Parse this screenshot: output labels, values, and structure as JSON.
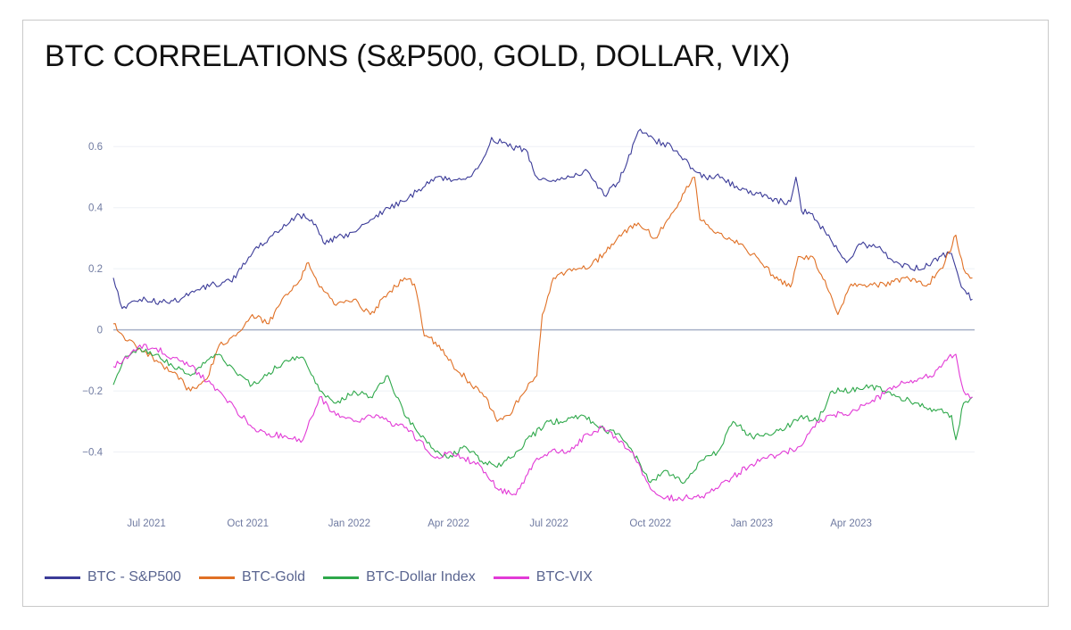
{
  "chart_data": {
    "type": "line",
    "title": "BTC CORRELATIONS (S&P500, GOLD, DOLLAR, VIX)",
    "xlabel": "",
    "ylabel": "",
    "x_range": [
      "2021-06-01",
      "2023-07-22"
    ],
    "ylim": [
      -0.6,
      0.7
    ],
    "y_ticks": [
      {
        "value": 0.6,
        "label": "0.6"
      },
      {
        "value": 0.4,
        "label": "0.4"
      },
      {
        "value": 0.2,
        "label": "0.2"
      },
      {
        "value": 0,
        "label": "0"
      },
      {
        "value": -0.2,
        "label": "−0.2"
      },
      {
        "value": -0.4,
        "label": "−0.4"
      }
    ],
    "x_ticks": [
      {
        "date": "2021-07-01",
        "label": "Jul 2021"
      },
      {
        "date": "2021-10-01",
        "label": "Oct 2021"
      },
      {
        "date": "2022-01-01",
        "label": "Jan 2022"
      },
      {
        "date": "2022-04-01",
        "label": "Apr 2022"
      },
      {
        "date": "2022-07-01",
        "label": "Jul 2022"
      },
      {
        "date": "2022-10-01",
        "label": "Oct 2022"
      },
      {
        "date": "2023-01-01",
        "label": "Jan 2023"
      },
      {
        "date": "2023-04-01",
        "label": "Apr 2023"
      }
    ],
    "grid": true,
    "legend_position": "bottom-left",
    "series": [
      {
        "name": "BTC - S&P500",
        "color": "#3b3b98",
        "points": [
          [
            "2021-06-01",
            0.17
          ],
          [
            "2021-06-09",
            0.07
          ],
          [
            "2021-06-25",
            0.1
          ],
          [
            "2021-07-15",
            0.09
          ],
          [
            "2021-08-01",
            0.1
          ],
          [
            "2021-08-15",
            0.13
          ],
          [
            "2021-09-01",
            0.15
          ],
          [
            "2021-09-15",
            0.16
          ],
          [
            "2021-09-25",
            0.2
          ],
          [
            "2021-10-05",
            0.25
          ],
          [
            "2021-10-20",
            0.3
          ],
          [
            "2021-11-01",
            0.33
          ],
          [
            "2021-11-15",
            0.38
          ],
          [
            "2021-11-28",
            0.36
          ],
          [
            "2021-12-10",
            0.28
          ],
          [
            "2021-12-20",
            0.3
          ],
          [
            "2022-01-05",
            0.32
          ],
          [
            "2022-01-20",
            0.36
          ],
          [
            "2022-02-05",
            0.4
          ],
          [
            "2022-02-20",
            0.42
          ],
          [
            "2022-03-05",
            0.46
          ],
          [
            "2022-03-20",
            0.5
          ],
          [
            "2022-04-05",
            0.49
          ],
          [
            "2022-04-20",
            0.5
          ],
          [
            "2022-05-01",
            0.55
          ],
          [
            "2022-05-10",
            0.63
          ],
          [
            "2022-05-25",
            0.6
          ],
          [
            "2022-06-10",
            0.59
          ],
          [
            "2022-06-20",
            0.5
          ],
          [
            "2022-07-05",
            0.49
          ],
          [
            "2022-07-20",
            0.5
          ],
          [
            "2022-08-05",
            0.52
          ],
          [
            "2022-08-20",
            0.44
          ],
          [
            "2022-09-01",
            0.48
          ],
          [
            "2022-09-10",
            0.55
          ],
          [
            "2022-09-20",
            0.65
          ],
          [
            "2022-10-05",
            0.62
          ],
          [
            "2022-10-20",
            0.6
          ],
          [
            "2022-11-01",
            0.56
          ],
          [
            "2022-11-10",
            0.52
          ],
          [
            "2022-11-20",
            0.5
          ],
          [
            "2022-12-05",
            0.5
          ],
          [
            "2022-12-20",
            0.46
          ],
          [
            "2023-01-05",
            0.45
          ],
          [
            "2023-01-20",
            0.42
          ],
          [
            "2023-02-05",
            0.42
          ],
          [
            "2023-02-10",
            0.5
          ],
          [
            "2023-02-15",
            0.39
          ],
          [
            "2023-02-25",
            0.38
          ],
          [
            "2023-03-10",
            0.31
          ],
          [
            "2023-03-20",
            0.26
          ],
          [
            "2023-03-28",
            0.22
          ],
          [
            "2023-04-10",
            0.28
          ],
          [
            "2023-04-25",
            0.27
          ],
          [
            "2023-05-10",
            0.22
          ],
          [
            "2023-05-25",
            0.2
          ],
          [
            "2023-06-10",
            0.21
          ],
          [
            "2023-06-20",
            0.24
          ],
          [
            "2023-07-01",
            0.25
          ],
          [
            "2023-07-10",
            0.14
          ],
          [
            "2023-07-20",
            0.1
          ]
        ]
      },
      {
        "name": "BTC-Gold",
        "color": "#e07025",
        "points": [
          [
            "2021-06-01",
            0.02
          ],
          [
            "2021-06-10",
            -0.02
          ],
          [
            "2021-06-25",
            -0.06
          ],
          [
            "2021-07-10",
            -0.1
          ],
          [
            "2021-07-25",
            -0.14
          ],
          [
            "2021-08-10",
            -0.2
          ],
          [
            "2021-08-25",
            -0.16
          ],
          [
            "2021-09-05",
            -0.05
          ],
          [
            "2021-09-20",
            -0.02
          ],
          [
            "2021-10-05",
            0.05
          ],
          [
            "2021-10-20",
            0.02
          ],
          [
            "2021-11-01",
            0.1
          ],
          [
            "2021-11-15",
            0.15
          ],
          [
            "2021-11-25",
            0.22
          ],
          [
            "2021-12-05",
            0.14
          ],
          [
            "2021-12-20",
            0.08
          ],
          [
            "2022-01-05",
            0.1
          ],
          [
            "2022-01-20",
            0.05
          ],
          [
            "2022-02-05",
            0.12
          ],
          [
            "2022-02-20",
            0.17
          ],
          [
            "2022-03-01",
            0.15
          ],
          [
            "2022-03-10",
            -0.02
          ],
          [
            "2022-03-20",
            -0.04
          ],
          [
            "2022-04-01",
            -0.1
          ],
          [
            "2022-04-20",
            -0.17
          ],
          [
            "2022-05-05",
            -0.22
          ],
          [
            "2022-05-15",
            -0.3
          ],
          [
            "2022-05-25",
            -0.28
          ],
          [
            "2022-06-05",
            -0.22
          ],
          [
            "2022-06-20",
            -0.15
          ],
          [
            "2022-06-25",
            0.05
          ],
          [
            "2022-07-05",
            0.17
          ],
          [
            "2022-07-20",
            0.2
          ],
          [
            "2022-08-05",
            0.2
          ],
          [
            "2022-08-20",
            0.25
          ],
          [
            "2022-09-01",
            0.3
          ],
          [
            "2022-09-20",
            0.35
          ],
          [
            "2022-10-05",
            0.3
          ],
          [
            "2022-10-20",
            0.38
          ],
          [
            "2022-11-01",
            0.45
          ],
          [
            "2022-11-10",
            0.5
          ],
          [
            "2022-11-15",
            0.36
          ],
          [
            "2022-12-01",
            0.32
          ],
          [
            "2022-12-20",
            0.28
          ],
          [
            "2023-01-05",
            0.24
          ],
          [
            "2023-01-20",
            0.18
          ],
          [
            "2023-02-05",
            0.14
          ],
          [
            "2023-02-12",
            0.24
          ],
          [
            "2023-02-25",
            0.24
          ],
          [
            "2023-03-05",
            0.18
          ],
          [
            "2023-03-15",
            0.1
          ],
          [
            "2023-03-20",
            0.05
          ],
          [
            "2023-04-01",
            0.15
          ],
          [
            "2023-04-15",
            0.14
          ],
          [
            "2023-05-01",
            0.15
          ],
          [
            "2023-05-20",
            0.17
          ],
          [
            "2023-06-10",
            0.15
          ],
          [
            "2023-06-25",
            0.22
          ],
          [
            "2023-07-05",
            0.31
          ],
          [
            "2023-07-12",
            0.2
          ],
          [
            "2023-07-20",
            0.17
          ]
        ]
      },
      {
        "name": "BTC-Dollar Index",
        "color": "#2ea84a",
        "points": [
          [
            "2021-06-01",
            -0.18
          ],
          [
            "2021-06-10",
            -0.1
          ],
          [
            "2021-06-25",
            -0.06
          ],
          [
            "2021-07-10",
            -0.08
          ],
          [
            "2021-07-25",
            -0.12
          ],
          [
            "2021-08-10",
            -0.15
          ],
          [
            "2021-08-25",
            -0.1
          ],
          [
            "2021-09-05",
            -0.08
          ],
          [
            "2021-09-20",
            -0.14
          ],
          [
            "2021-10-05",
            -0.18
          ],
          [
            "2021-10-20",
            -0.14
          ],
          [
            "2021-11-05",
            -0.1
          ],
          [
            "2021-11-20",
            -0.09
          ],
          [
            "2021-12-05",
            -0.2
          ],
          [
            "2021-12-20",
            -0.24
          ],
          [
            "2022-01-05",
            -0.2
          ],
          [
            "2022-01-20",
            -0.22
          ],
          [
            "2022-02-05",
            -0.15
          ],
          [
            "2022-02-20",
            -0.28
          ],
          [
            "2022-03-05",
            -0.34
          ],
          [
            "2022-03-20",
            -0.4
          ],
          [
            "2022-04-01",
            -0.42
          ],
          [
            "2022-04-15",
            -0.38
          ],
          [
            "2022-05-01",
            -0.43
          ],
          [
            "2022-05-15",
            -0.45
          ],
          [
            "2022-06-01",
            -0.4
          ],
          [
            "2022-06-15",
            -0.35
          ],
          [
            "2022-07-01",
            -0.3
          ],
          [
            "2022-07-15",
            -0.3
          ],
          [
            "2022-08-01",
            -0.28
          ],
          [
            "2022-08-15",
            -0.32
          ],
          [
            "2022-09-01",
            -0.34
          ],
          [
            "2022-09-15",
            -0.4
          ],
          [
            "2022-10-01",
            -0.5
          ],
          [
            "2022-10-15",
            -0.46
          ],
          [
            "2022-11-01",
            -0.5
          ],
          [
            "2022-11-15",
            -0.43
          ],
          [
            "2022-12-01",
            -0.4
          ],
          [
            "2022-12-15",
            -0.3
          ],
          [
            "2023-01-01",
            -0.35
          ],
          [
            "2023-01-15",
            -0.34
          ],
          [
            "2023-02-01",
            -0.32
          ],
          [
            "2023-02-15",
            -0.28
          ],
          [
            "2023-03-01",
            -0.3
          ],
          [
            "2023-03-15",
            -0.2
          ],
          [
            "2023-04-01",
            -0.2
          ],
          [
            "2023-04-15",
            -0.18
          ],
          [
            "2023-05-01",
            -0.2
          ],
          [
            "2023-05-15",
            -0.22
          ],
          [
            "2023-06-01",
            -0.24
          ],
          [
            "2023-06-15",
            -0.26
          ],
          [
            "2023-07-01",
            -0.28
          ],
          [
            "2023-07-05",
            -0.36
          ],
          [
            "2023-07-12",
            -0.24
          ],
          [
            "2023-07-20",
            -0.22
          ]
        ]
      },
      {
        "name": "BTC-VIX",
        "color": "#e23ad6",
        "points": [
          [
            "2021-06-01",
            -0.12
          ],
          [
            "2021-06-10",
            -0.1
          ],
          [
            "2021-06-25",
            -0.05
          ],
          [
            "2021-07-10",
            -0.06
          ],
          [
            "2021-07-25",
            -0.09
          ],
          [
            "2021-08-10",
            -0.12
          ],
          [
            "2021-08-25",
            -0.17
          ],
          [
            "2021-09-05",
            -0.2
          ],
          [
            "2021-09-20",
            -0.26
          ],
          [
            "2021-10-05",
            -0.32
          ],
          [
            "2021-10-20",
            -0.34
          ],
          [
            "2021-11-05",
            -0.35
          ],
          [
            "2021-11-20",
            -0.36
          ],
          [
            "2021-12-05",
            -0.22
          ],
          [
            "2021-12-20",
            -0.28
          ],
          [
            "2022-01-05",
            -0.3
          ],
          [
            "2022-01-20",
            -0.28
          ],
          [
            "2022-02-05",
            -0.3
          ],
          [
            "2022-02-20",
            -0.32
          ],
          [
            "2022-03-05",
            -0.36
          ],
          [
            "2022-03-20",
            -0.42
          ],
          [
            "2022-04-01",
            -0.4
          ],
          [
            "2022-04-15",
            -0.42
          ],
          [
            "2022-05-01",
            -0.45
          ],
          [
            "2022-05-15",
            -0.52
          ],
          [
            "2022-06-01",
            -0.54
          ],
          [
            "2022-06-10",
            -0.48
          ],
          [
            "2022-06-20",
            -0.42
          ],
          [
            "2022-07-01",
            -0.4
          ],
          [
            "2022-07-20",
            -0.4
          ],
          [
            "2022-08-05",
            -0.34
          ],
          [
            "2022-08-20",
            -0.32
          ],
          [
            "2022-09-01",
            -0.36
          ],
          [
            "2022-09-15",
            -0.4
          ],
          [
            "2022-10-01",
            -0.52
          ],
          [
            "2022-10-15",
            -0.55
          ],
          [
            "2022-11-01",
            -0.55
          ],
          [
            "2022-11-15",
            -0.55
          ],
          [
            "2022-12-01",
            -0.52
          ],
          [
            "2022-12-15",
            -0.48
          ],
          [
            "2023-01-01",
            -0.44
          ],
          [
            "2023-01-15",
            -0.42
          ],
          [
            "2023-02-01",
            -0.4
          ],
          [
            "2023-02-15",
            -0.38
          ],
          [
            "2023-03-01",
            -0.3
          ],
          [
            "2023-03-15",
            -0.28
          ],
          [
            "2023-04-01",
            -0.27
          ],
          [
            "2023-04-15",
            -0.24
          ],
          [
            "2023-05-01",
            -0.21
          ],
          [
            "2023-05-15",
            -0.18
          ],
          [
            "2023-06-01",
            -0.16
          ],
          [
            "2023-06-15",
            -0.15
          ],
          [
            "2023-06-25",
            -0.1
          ],
          [
            "2023-07-05",
            -0.08
          ],
          [
            "2023-07-12",
            -0.2
          ],
          [
            "2023-07-20",
            -0.22
          ]
        ]
      }
    ]
  }
}
